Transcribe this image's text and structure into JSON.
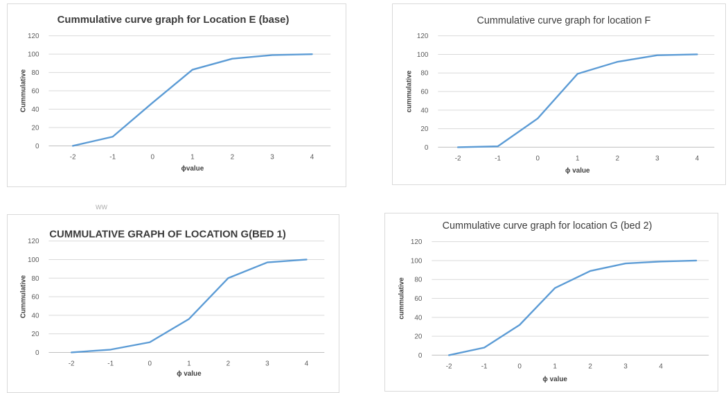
{
  "chart_data": [
    {
      "type": "line",
      "title": "Cummulative curve graph for Location E (base)",
      "xlabel": "ɸvalue",
      "ylabel": "Cummulative",
      "categories": [
        "-2",
        "-1",
        "0",
        "1",
        "2",
        "3",
        "4"
      ],
      "series": [
        {
          "values": [
            0,
            10,
            47,
            83,
            95,
            99,
            100
          ]
        }
      ],
      "ylim": [
        0,
        120
      ],
      "yticks": [
        0,
        20,
        40,
        60,
        80,
        100,
        120
      ],
      "grid": true,
      "line_color": "#5b9bd5"
    },
    {
      "type": "line",
      "title": "Cummulative curve graph for location F",
      "xlabel": "ɸ value",
      "ylabel": "cummulative",
      "categories": [
        "-2",
        "-1",
        "0",
        "1",
        "2",
        "3",
        "4"
      ],
      "series": [
        {
          "values": [
            0,
            1,
            31,
            79,
            92,
            99,
            100
          ]
        }
      ],
      "ylim": [
        0,
        120
      ],
      "yticks": [
        0,
        20,
        40,
        60,
        80,
        100,
        120
      ],
      "grid": true,
      "line_color": "#5b9bd5"
    },
    {
      "type": "line",
      "title": "CUMMULATIVE GRAPH OF LOCATION G(BED 1)",
      "xlabel": "ɸ value",
      "ylabel": "Cummulative",
      "categories": [
        "-2",
        "-1",
        "0",
        "1",
        "2",
        "3",
        "4"
      ],
      "series": [
        {
          "values": [
            0,
            3,
            11,
            36,
            80,
            97,
            100
          ]
        }
      ],
      "ylim": [
        0,
        120
      ],
      "yticks": [
        0,
        20,
        40,
        60,
        80,
        100,
        120
      ],
      "grid": true,
      "line_color": "#5b9bd5"
    },
    {
      "type": "line",
      "title": "Cummulative curve graph for location G (bed 2)",
      "xlabel": "ɸ value",
      "ylabel": "cummulative",
      "categories": [
        "-2",
        "-1",
        "0",
        "1",
        "2",
        "3",
        "4",
        ""
      ],
      "series": [
        {
          "values": [
            0,
            8,
            32,
            71,
            89,
            97,
            99,
            100
          ]
        }
      ],
      "ylim": [
        0,
        120
      ],
      "yticks": [
        0,
        20,
        40,
        60,
        80,
        100,
        120
      ],
      "grid": true,
      "line_color": "#5b9bd5"
    }
  ],
  "stray_mark": "WW"
}
